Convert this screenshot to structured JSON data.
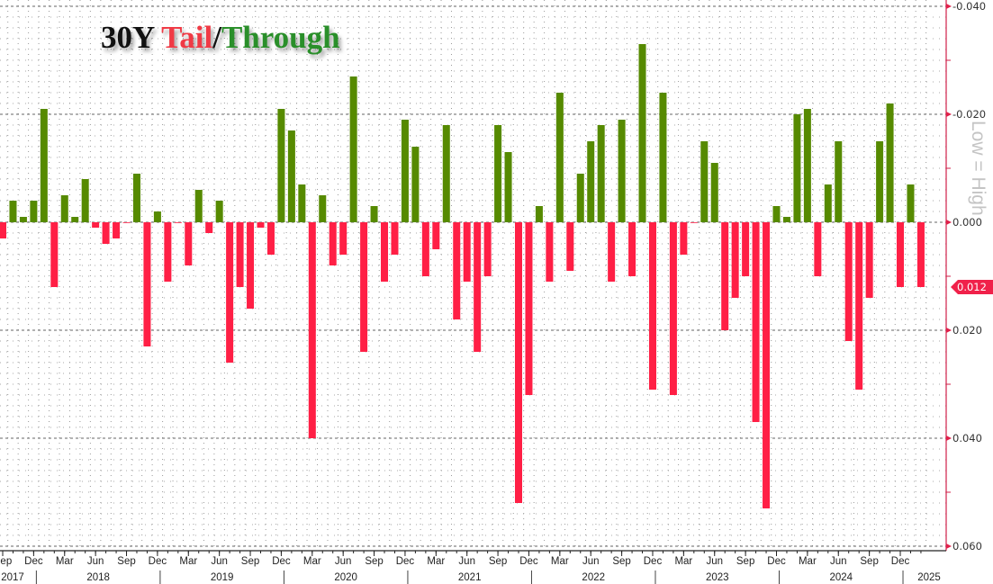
{
  "title": {
    "part1": "30Y ",
    "part2": "Tail",
    "part3": "/",
    "part4": "Through"
  },
  "side_label": "Low = High",
  "chart_data": {
    "type": "bar",
    "title": "30Y Tail/Through",
    "ylabel": "Low = High",
    "y_axis_inverted": true,
    "ylim": [
      -0.04,
      0.06
    ],
    "yticks": [
      "-0.040",
      "-0.020",
      "0.000",
      "0.020",
      "0.040",
      "0.060"
    ],
    "grid": true,
    "axis_side": "right",
    "colors": {
      "through": "#568a00",
      "tail": "#ff1f45"
    },
    "last_value_label": "0.012",
    "categories": [
      "2017-09",
      "2017-10",
      "2017-11",
      "2017-12",
      "2018-01",
      "2018-02",
      "2018-03",
      "2018-04",
      "2018-05",
      "2018-06",
      "2018-07",
      "2018-08",
      "2018-09",
      "2018-10",
      "2018-11",
      "2018-12",
      "2019-01",
      "2019-02",
      "2019-03",
      "2019-04",
      "2019-05",
      "2019-06",
      "2019-07",
      "2019-08",
      "2019-09",
      "2019-10",
      "2019-11",
      "2019-12",
      "2020-01",
      "2020-02",
      "2020-03",
      "2020-04",
      "2020-05",
      "2020-06",
      "2020-07",
      "2020-08",
      "2020-09",
      "2020-10",
      "2020-11",
      "2020-12",
      "2021-01",
      "2021-02",
      "2021-03",
      "2021-04",
      "2021-05",
      "2021-06",
      "2021-07",
      "2021-08",
      "2021-09",
      "2021-10",
      "2021-11",
      "2021-12",
      "2022-01",
      "2022-02",
      "2022-03",
      "2022-04",
      "2022-05",
      "2022-06",
      "2022-07",
      "2022-08",
      "2022-09",
      "2022-10",
      "2022-11",
      "2022-12",
      "2023-01",
      "2023-02",
      "2023-03",
      "2023-04",
      "2023-05",
      "2023-06",
      "2023-07",
      "2023-08",
      "2023-09",
      "2023-10",
      "2023-11",
      "2023-12",
      "2024-01",
      "2024-02",
      "2024-03",
      "2024-04",
      "2024-05",
      "2024-06",
      "2024-07",
      "2024-08",
      "2024-09",
      "2024-10",
      "2024-11",
      "2024-12",
      "2025-01",
      "2025-02"
    ],
    "values": [
      0.003,
      -0.004,
      -0.001,
      -0.004,
      -0.021,
      0.012,
      -0.005,
      -0.001,
      -0.008,
      0.001,
      0.004,
      0.003,
      0.0,
      -0.009,
      0.023,
      -0.002,
      0.011,
      0.0,
      0.008,
      -0.006,
      0.002,
      -0.004,
      0.026,
      0.012,
      0.016,
      0.001,
      0.006,
      -0.021,
      -0.017,
      -0.007,
      0.04,
      -0.005,
      0.008,
      0.006,
      -0.027,
      0.024,
      -0.003,
      0.011,
      0.006,
      -0.019,
      -0.014,
      0.01,
      0.005,
      -0.018,
      0.018,
      0.011,
      0.024,
      0.01,
      -0.018,
      -0.013,
      0.052,
      0.032,
      -0.003,
      0.011,
      -0.024,
      0.009,
      -0.009,
      -0.015,
      -0.018,
      0.011,
      -0.019,
      0.01,
      -0.033,
      0.031,
      -0.024,
      0.032,
      0.006,
      0.0,
      -0.015,
      -0.011,
      0.02,
      0.014,
      0.01,
      0.037,
      0.053,
      -0.003,
      -0.001,
      -0.02,
      -0.021,
      0.01,
      -0.007,
      -0.015,
      0.022,
      0.031,
      0.014,
      -0.015,
      -0.022,
      0.012,
      -0.007,
      0.012
    ],
    "xtick_labels": [
      "Sep",
      "Dec",
      "Mar",
      "Jun",
      "Sep",
      "Dec",
      "Mar",
      "Jun",
      "Sep",
      "Dec",
      "Mar",
      "Jun",
      "Sep",
      "Dec",
      "Mar",
      "Jun",
      "Sep",
      "Dec",
      "Mar",
      "Jun",
      "Sep",
      "Dec",
      "Mar",
      "Jun",
      "Sep",
      "Dec",
      "Mar",
      "Jun",
      "Sep",
      "Dec"
    ],
    "year_labels": [
      "2017",
      "2018",
      "2019",
      "2020",
      "2021",
      "2022",
      "2023",
      "2024",
      "2025"
    ]
  }
}
